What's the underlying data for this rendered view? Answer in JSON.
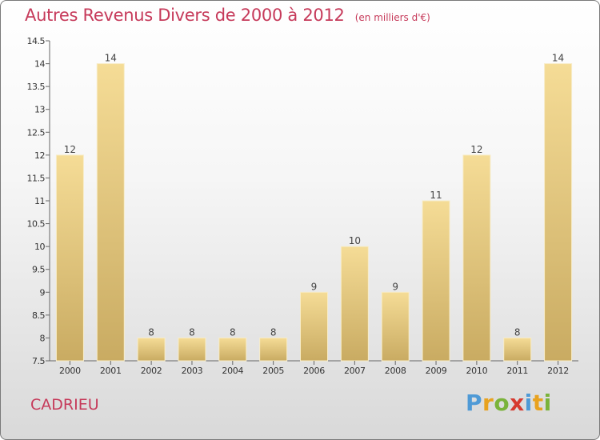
{
  "chart_data": {
    "type": "bar",
    "title": "Autres Revenus Divers de 2000 à 2012",
    "unit_note": "(en milliers d'€)",
    "categories": [
      "2000",
      "2001",
      "2002",
      "2003",
      "2004",
      "2005",
      "2006",
      "2007",
      "2008",
      "2009",
      "2010",
      "2011",
      "2012"
    ],
    "values": [
      12,
      14,
      8,
      8,
      8,
      8,
      9,
      10,
      9,
      11,
      12,
      8,
      14
    ],
    "value_labels": [
      "12",
      "14",
      "8",
      "8",
      "8",
      "8",
      "9",
      "10",
      "9",
      "11",
      "12",
      "8",
      "14"
    ],
    "ylim": [
      7.5,
      14.5
    ],
    "yticks": [
      7.5,
      8,
      8.5,
      9,
      9.5,
      10,
      10.5,
      11,
      11.5,
      12,
      12.5,
      13,
      13.5,
      14,
      14.5
    ],
    "ytick_labels": [
      "7.5",
      "8",
      "8.5",
      "9",
      "9.5",
      "10",
      "10.5",
      "11",
      "11.5",
      "12",
      "12.5",
      "13",
      "13.5",
      "14",
      "14.5"
    ],
    "grid": false,
    "legend": "none",
    "bar_color": "#e3c77e",
    "text_color": "#c63a5a"
  },
  "footer": {
    "place": "CADRIEU",
    "logo": {
      "p": "P",
      "r": "r",
      "o": "o",
      "x": "x",
      "i": "i",
      "t": "t",
      "i2": "i"
    }
  }
}
